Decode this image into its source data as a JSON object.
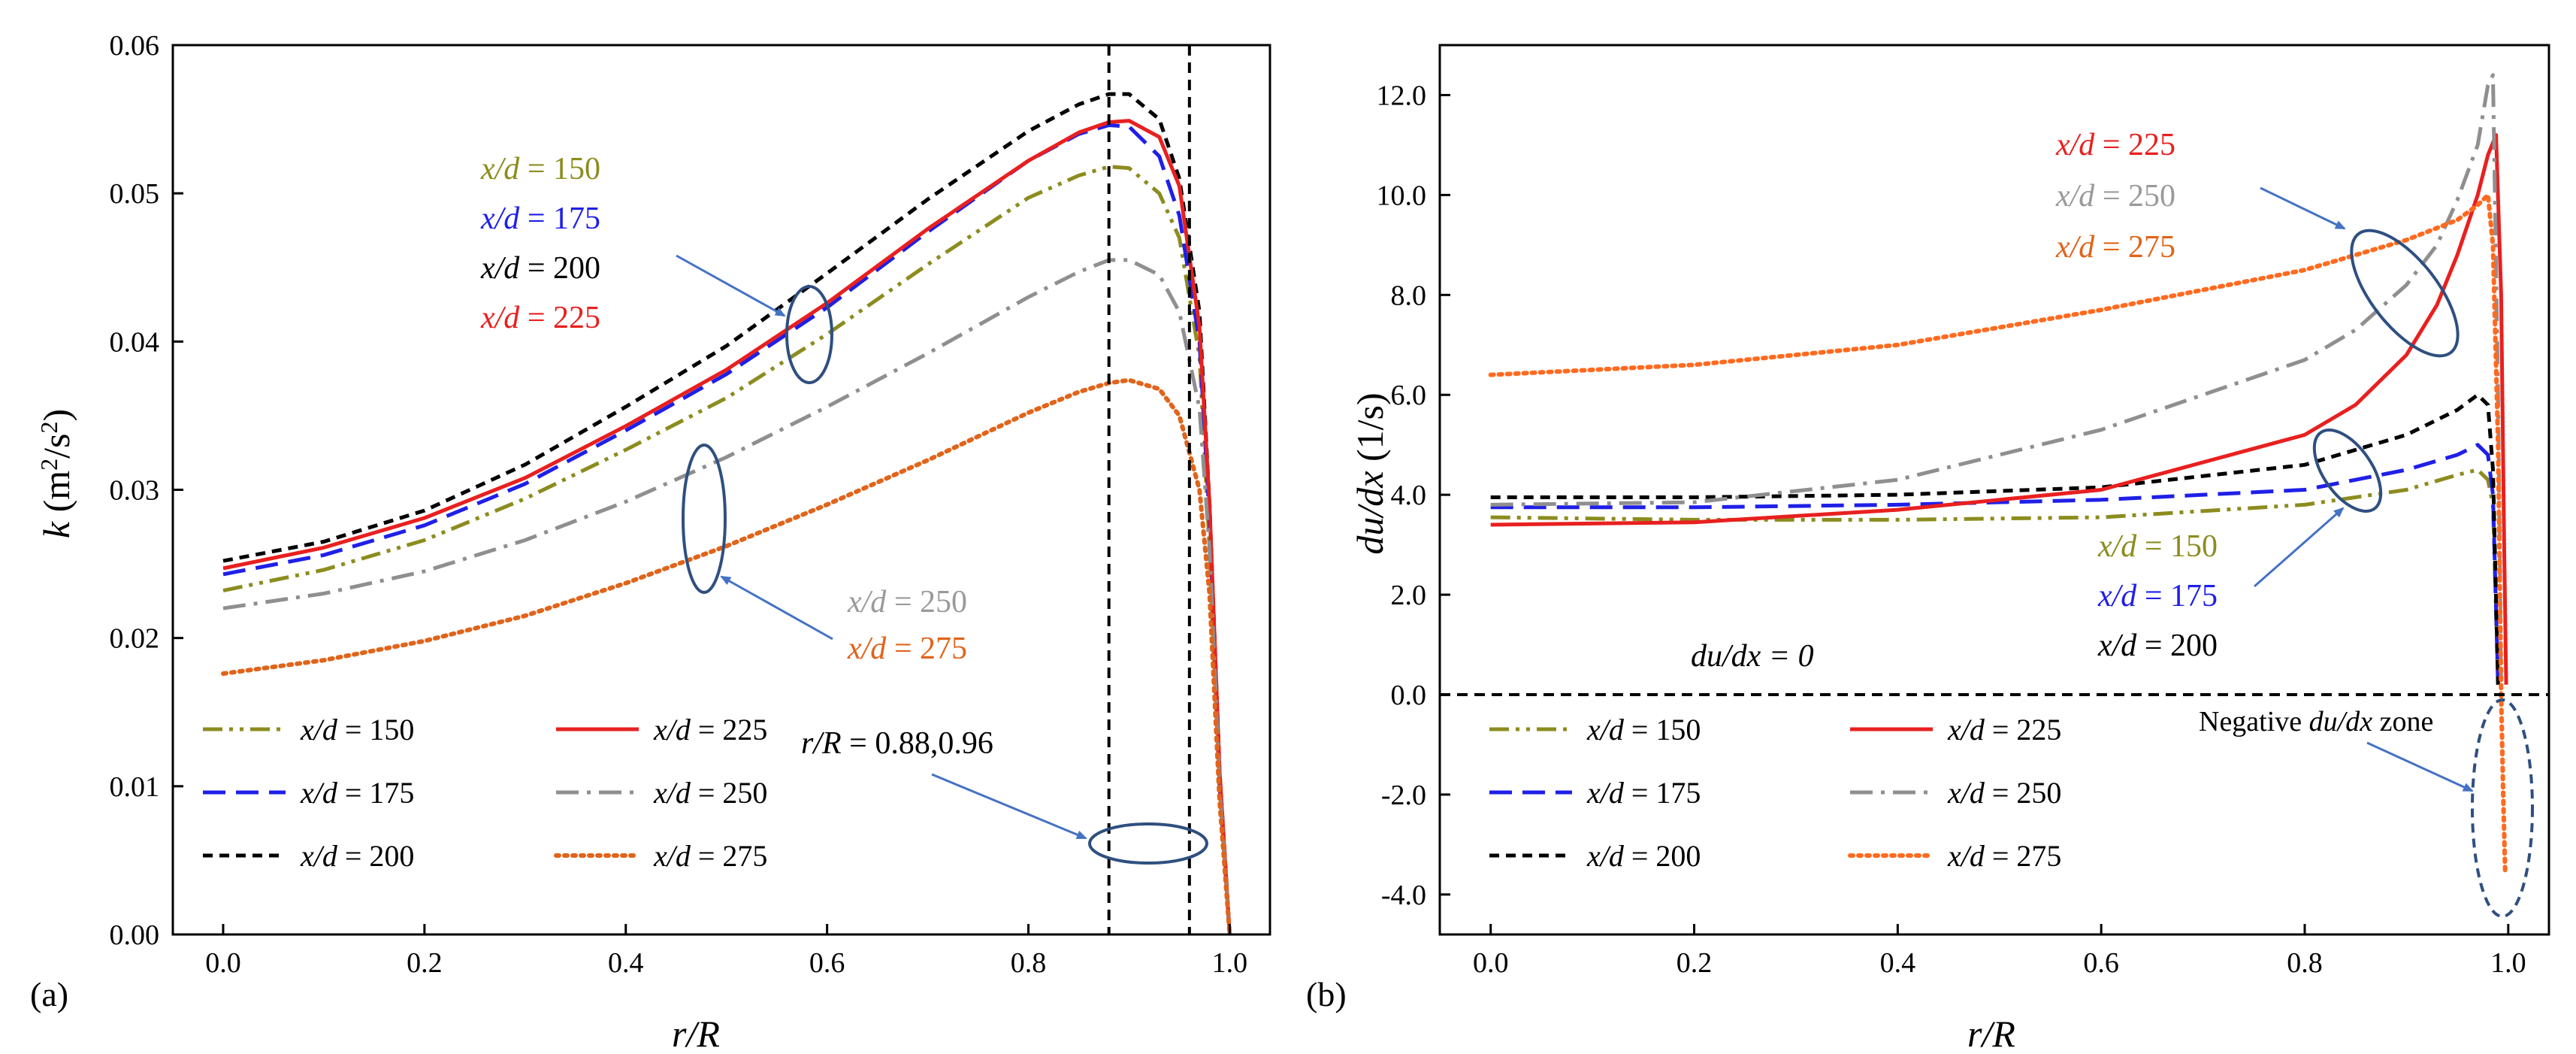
{
  "chart_data": [
    {
      "panel": "(a)",
      "type": "line",
      "xlabel": "r/R",
      "ylabel_main": "k",
      "ylabel_unit": "(m2/s2)",
      "xlim": [
        -0.05,
        1.04
      ],
      "ylim": [
        0,
        0.06
      ],
      "xticks": [
        "0.0",
        "0.2",
        "0.4",
        "0.6",
        "0.8",
        "1.0"
      ],
      "yticks": [
        "0.00",
        "0.01",
        "0.02",
        "0.03",
        "0.04",
        "0.05",
        "0.06"
      ],
      "vlines": [
        0.88,
        0.96
      ],
      "series": [
        {
          "name": "x/d = 150",
          "color": "#8c8c1f",
          "dash": "dashdotdot",
          "x": [
            0,
            0.1,
            0.2,
            0.3,
            0.4,
            0.5,
            0.6,
            0.7,
            0.8,
            0.85,
            0.88,
            0.9,
            0.93,
            0.95,
            0.97,
            0.98,
            0.99,
            1.0
          ],
          "y": [
            0.0232,
            0.0246,
            0.0266,
            0.0294,
            0.0327,
            0.0362,
            0.0405,
            0.0452,
            0.0497,
            0.0512,
            0.0518,
            0.0517,
            0.05,
            0.047,
            0.039,
            0.026,
            0.01,
            0.0
          ]
        },
        {
          "name": "x/d = 175",
          "color": "#1f1fe8",
          "dash": "dash",
          "x": [
            0,
            0.1,
            0.2,
            0.3,
            0.4,
            0.5,
            0.6,
            0.7,
            0.8,
            0.85,
            0.88,
            0.9,
            0.93,
            0.95,
            0.97,
            0.98,
            0.99,
            1.0
          ],
          "y": [
            0.0243,
            0.0256,
            0.0276,
            0.0304,
            0.034,
            0.0378,
            0.0423,
            0.0474,
            0.0522,
            0.054,
            0.0546,
            0.0545,
            0.0525,
            0.0485,
            0.04,
            0.028,
            0.01,
            0.0
          ]
        },
        {
          "name": "x/d = 200",
          "color": "#000000",
          "dash": "shortdash",
          "x": [
            0,
            0.1,
            0.2,
            0.3,
            0.4,
            0.5,
            0.6,
            0.7,
            0.8,
            0.85,
            0.88,
            0.9,
            0.93,
            0.95,
            0.97,
            0.98,
            0.99,
            1.0
          ],
          "y": [
            0.0252,
            0.0265,
            0.0286,
            0.0317,
            0.0356,
            0.0397,
            0.0446,
            0.0496,
            0.0542,
            0.056,
            0.0567,
            0.0567,
            0.055,
            0.051,
            0.042,
            0.029,
            0.011,
            0.0
          ]
        },
        {
          "name": "x/d = 225",
          "color": "#e8201f",
          "dash": "solid",
          "x": [
            0,
            0.1,
            0.2,
            0.3,
            0.4,
            0.5,
            0.6,
            0.7,
            0.8,
            0.85,
            0.88,
            0.9,
            0.93,
            0.95,
            0.97,
            0.98,
            0.99,
            1.0
          ],
          "y": [
            0.0247,
            0.0261,
            0.0281,
            0.0308,
            0.0343,
            0.0381,
            0.0426,
            0.0476,
            0.0522,
            0.0541,
            0.0548,
            0.0549,
            0.0538,
            0.0505,
            0.041,
            0.029,
            0.011,
            0.0
          ]
        },
        {
          "name": "x/d = 250",
          "color": "#8f8f8f",
          "dash": "dashdot",
          "x": [
            0,
            0.1,
            0.2,
            0.3,
            0.4,
            0.5,
            0.6,
            0.7,
            0.8,
            0.85,
            0.88,
            0.9,
            0.93,
            0.95,
            0.97,
            0.98,
            0.99,
            1.0
          ],
          "y": [
            0.022,
            0.023,
            0.0245,
            0.0266,
            0.0292,
            0.0322,
            0.0356,
            0.0392,
            0.043,
            0.0447,
            0.0455,
            0.0455,
            0.0445,
            0.042,
            0.0355,
            0.026,
            0.01,
            0.0
          ]
        },
        {
          "name": "x/d = 275",
          "color": "#e0641a",
          "dash": "dot",
          "x": [
            0,
            0.1,
            0.2,
            0.3,
            0.4,
            0.5,
            0.6,
            0.7,
            0.8,
            0.85,
            0.88,
            0.9,
            0.93,
            0.95,
            0.97,
            0.98,
            0.99,
            1.0
          ],
          "y": [
            0.0176,
            0.0185,
            0.0198,
            0.0215,
            0.0237,
            0.0262,
            0.029,
            0.032,
            0.0352,
            0.0366,
            0.0372,
            0.0374,
            0.0368,
            0.035,
            0.03,
            0.023,
            0.009,
            0.0
          ]
        }
      ],
      "annotations": {
        "group_upper": [
          "x/d = 150",
          "x/d = 175",
          "x/d = 200",
          "x/d = 225"
        ],
        "group_lower": [
          "x/d = 250",
          "x/d = 275"
        ],
        "vline_note": "r/R = 0.88,0.96"
      },
      "legend": [
        [
          "x/d = 150",
          "x/d = 225"
        ],
        [
          "x/d = 175",
          "x/d = 250"
        ],
        [
          "x/d = 200",
          "x/d = 275"
        ]
      ]
    },
    {
      "panel": "(b)",
      "type": "line",
      "xlabel": "r/R",
      "ylabel": "du/dx (1/s)",
      "xlim": [
        -0.05,
        1.04
      ],
      "ylim": [
        -4.8,
        13.0
      ],
      "xticks": [
        "0.0",
        "0.2",
        "0.4",
        "0.6",
        "0.8",
        "1.0"
      ],
      "yticks": [
        "-4.0",
        "-2.0",
        "0.0",
        "2.0",
        "4.0",
        "6.0",
        "8.0",
        "10.0",
        "12.0"
      ],
      "hline": 0,
      "series": [
        {
          "name": "x/d = 150",
          "color": "#8c8c1f",
          "dash": "dashdotdot",
          "x": [
            0,
            0.2,
            0.4,
            0.6,
            0.8,
            0.9,
            0.95,
            0.97,
            0.98,
            0.985,
            0.99
          ],
          "y": [
            3.55,
            3.5,
            3.5,
            3.55,
            3.8,
            4.1,
            4.4,
            4.5,
            4.3,
            3.8,
            0.2
          ]
        },
        {
          "name": "x/d = 175",
          "color": "#1f1fe8",
          "dash": "dash",
          "x": [
            0,
            0.2,
            0.4,
            0.6,
            0.8,
            0.9,
            0.95,
            0.97,
            0.98,
            0.985,
            0.99
          ],
          "y": [
            3.75,
            3.75,
            3.8,
            3.9,
            4.1,
            4.5,
            4.8,
            5.0,
            4.8,
            4.0,
            0.2
          ]
        },
        {
          "name": "x/d = 200",
          "color": "#000000",
          "dash": "shortdash",
          "x": [
            0,
            0.2,
            0.4,
            0.6,
            0.8,
            0.9,
            0.95,
            0.97,
            0.98,
            0.985,
            0.99
          ],
          "y": [
            3.95,
            3.95,
            4.0,
            4.15,
            4.6,
            5.2,
            5.7,
            6.0,
            5.8,
            4.5,
            0.2
          ]
        },
        {
          "name": "x/d = 225",
          "color": "#e8201f",
          "dash": "solid",
          "x": [
            0,
            0.2,
            0.4,
            0.6,
            0.8,
            0.85,
            0.9,
            0.93,
            0.95,
            0.97,
            0.98,
            0.988,
            0.993,
            0.996,
            0.998
          ],
          "y": [
            3.4,
            3.45,
            3.7,
            4.1,
            5.2,
            5.8,
            6.8,
            7.8,
            8.8,
            10.0,
            10.8,
            11.2,
            8.0,
            3.0,
            0.2
          ]
        },
        {
          "name": "x/d = 250",
          "color": "#8f8f8f",
          "dash": "dashdot",
          "x": [
            0,
            0.2,
            0.4,
            0.6,
            0.8,
            0.85,
            0.9,
            0.93,
            0.95,
            0.97,
            0.98,
            0.985,
            0.99,
            0.993
          ],
          "y": [
            3.8,
            3.85,
            4.3,
            5.3,
            6.7,
            7.3,
            8.2,
            9.0,
            9.9,
            11.0,
            12.2,
            12.4,
            6.0,
            0.2
          ]
        },
        {
          "name": "x/d = 275",
          "color": "#ff6a1f",
          "dash": "dot",
          "x": [
            0,
            0.2,
            0.4,
            0.6,
            0.8,
            0.9,
            0.95,
            0.97,
            0.98,
            0.985,
            0.99,
            0.993,
            0.995,
            0.997
          ],
          "y": [
            6.4,
            6.6,
            7.0,
            7.7,
            8.5,
            9.1,
            9.5,
            9.8,
            10.0,
            9.0,
            5.0,
            0.0,
            -2.0,
            -3.6
          ]
        }
      ],
      "annotations": {
        "group_upper": [
          "x/d = 225",
          "x/d = 250",
          "x/d = 275"
        ],
        "group_lower": [
          "x/d = 150",
          "x/d = 175",
          "x/d = 200"
        ],
        "zero_line_label": "du/dx = 0",
        "negative_zone_label_pre": "Negative ",
        "negative_zone_label_var": "du/dx",
        "negative_zone_label_post": " zone"
      },
      "legend": [
        [
          "x/d = 150",
          "x/d = 225"
        ],
        [
          "x/d = 175",
          "x/d = 250"
        ],
        [
          "x/d = 200",
          "x/d = 275"
        ]
      ]
    }
  ]
}
